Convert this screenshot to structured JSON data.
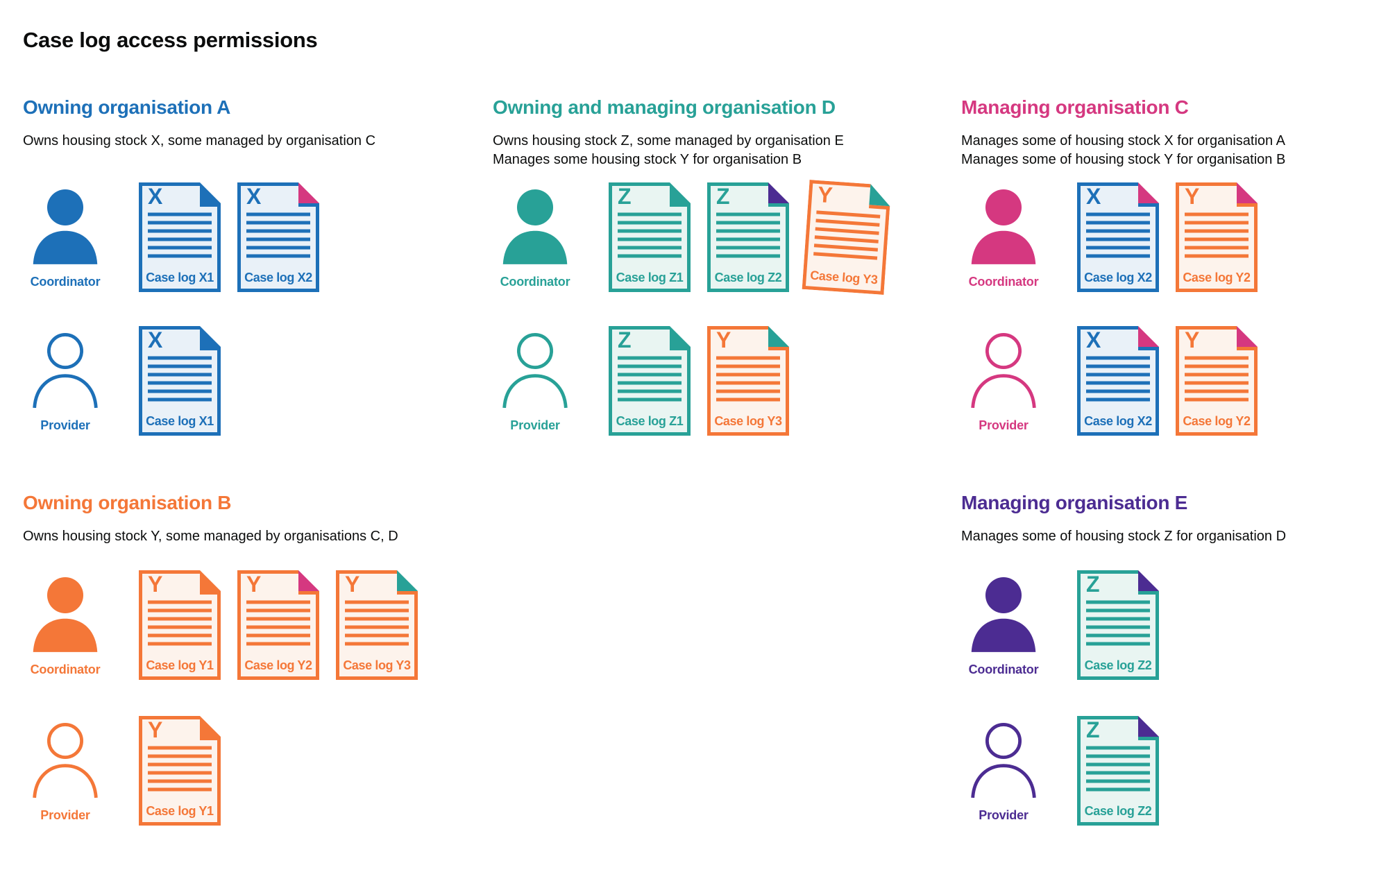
{
  "title": "Case log access permissions",
  "colors": {
    "blue": "#1d70b8",
    "teal": "#28a197",
    "pink": "#d53880",
    "orange": "#f47738",
    "purple": "#4c2c92",
    "text": "#0b0c0c",
    "tints": {
      "blue": "#e9f1f8",
      "teal": "#e9f5f2",
      "orange": "#fdf3ec"
    }
  },
  "sections": [
    {
      "id": "owning-organisation-a",
      "title": "Owning organisation A",
      "color": "blue",
      "column": 0,
      "row": 0,
      "subtitle": [
        "Owns housing stock X, some managed by organisation C"
      ],
      "roles": [
        {
          "label": "Coordinator",
          "type": "coordinator",
          "docs": [
            {
              "letter": "X",
              "label": "Case log X1",
              "color": "blue",
              "fold": "blue"
            },
            {
              "letter": "X",
              "label": "Case log X2",
              "color": "blue",
              "fold": "pink"
            }
          ]
        },
        {
          "label": "Provider",
          "type": "provider",
          "docs": [
            {
              "letter": "X",
              "label": "Case log X1",
              "color": "blue",
              "fold": "blue"
            }
          ]
        }
      ]
    },
    {
      "id": "owning-and-managing-organisation-d",
      "title": "Owning and managing organisation D",
      "color": "teal",
      "column": 1,
      "row": 0,
      "subtitle": [
        "Owns housing stock Z, some managed by organisation E",
        "Manages some housing stock Y for organisation B"
      ],
      "roles": [
        {
          "label": "Coordinator",
          "type": "coordinator",
          "docs": [
            {
              "letter": "Z",
              "label": "Case log Z1",
              "color": "teal",
              "fold": "teal"
            },
            {
              "letter": "Z",
              "label": "Case log Z2",
              "color": "teal",
              "fold": "purple"
            },
            {
              "letter": "Y",
              "label": "Case log Y3",
              "color": "orange",
              "fold": "teal",
              "tilt": 4
            }
          ]
        },
        {
          "label": "Provider",
          "type": "provider",
          "docs": [
            {
              "letter": "Z",
              "label": "Case log Z1",
              "color": "teal",
              "fold": "teal"
            },
            {
              "letter": "Y",
              "label": "Case log Y3",
              "color": "orange",
              "fold": "teal"
            }
          ]
        }
      ]
    },
    {
      "id": "managing-organisation-c",
      "title": "Managing organisation C",
      "color": "pink",
      "column": 2,
      "row": 0,
      "subtitle": [
        "Manages some of housing stock X for organisation A",
        "Manages some of housing stock Y for organisation B"
      ],
      "roles": [
        {
          "label": "Coordinator",
          "type": "coordinator",
          "docs": [
            {
              "letter": "X",
              "label": "Case log X2",
              "color": "blue",
              "fold": "pink"
            },
            {
              "letter": "Y",
              "label": "Case log Y2",
              "color": "orange",
              "fold": "pink"
            }
          ]
        },
        {
          "label": "Provider",
          "type": "provider",
          "docs": [
            {
              "letter": "X",
              "label": "Case log X2",
              "color": "blue",
              "fold": "pink"
            },
            {
              "letter": "Y",
              "label": "Case log Y2",
              "color": "orange",
              "fold": "pink"
            }
          ]
        }
      ]
    },
    {
      "id": "owning-organisation-b",
      "title": "Owning organisation B",
      "color": "orange",
      "column": 0,
      "row": 1,
      "subtitle": [
        "Owns housing stock Y, some managed by organisations C, D"
      ],
      "roles": [
        {
          "label": "Coordinator",
          "type": "coordinator",
          "docs": [
            {
              "letter": "Y",
              "label": "Case log Y1",
              "color": "orange",
              "fold": "orange"
            },
            {
              "letter": "Y",
              "label": "Case log Y2",
              "color": "orange",
              "fold": "pink"
            },
            {
              "letter": "Y",
              "label": "Case log Y3",
              "color": "orange",
              "fold": "teal"
            }
          ]
        },
        {
          "label": "Provider",
          "type": "provider",
          "docs": [
            {
              "letter": "Y",
              "label": "Case log Y1",
              "color": "orange",
              "fold": "orange"
            }
          ]
        }
      ]
    },
    {
      "id": "managing-organisation-e",
      "title": "Managing organisation E",
      "color": "purple",
      "column": 2,
      "row": 1,
      "subtitle": [
        "Manages some of housing stock Z for organisation D"
      ],
      "roles": [
        {
          "label": "Coordinator",
          "type": "coordinator",
          "docs": [
            {
              "letter": "Z",
              "label": "Case log Z2",
              "color": "teal",
              "fold": "purple"
            }
          ]
        },
        {
          "label": "Provider",
          "type": "provider",
          "docs": [
            {
              "letter": "Z",
              "label": "Case log Z2",
              "color": "teal",
              "fold": "purple"
            }
          ]
        }
      ]
    }
  ]
}
